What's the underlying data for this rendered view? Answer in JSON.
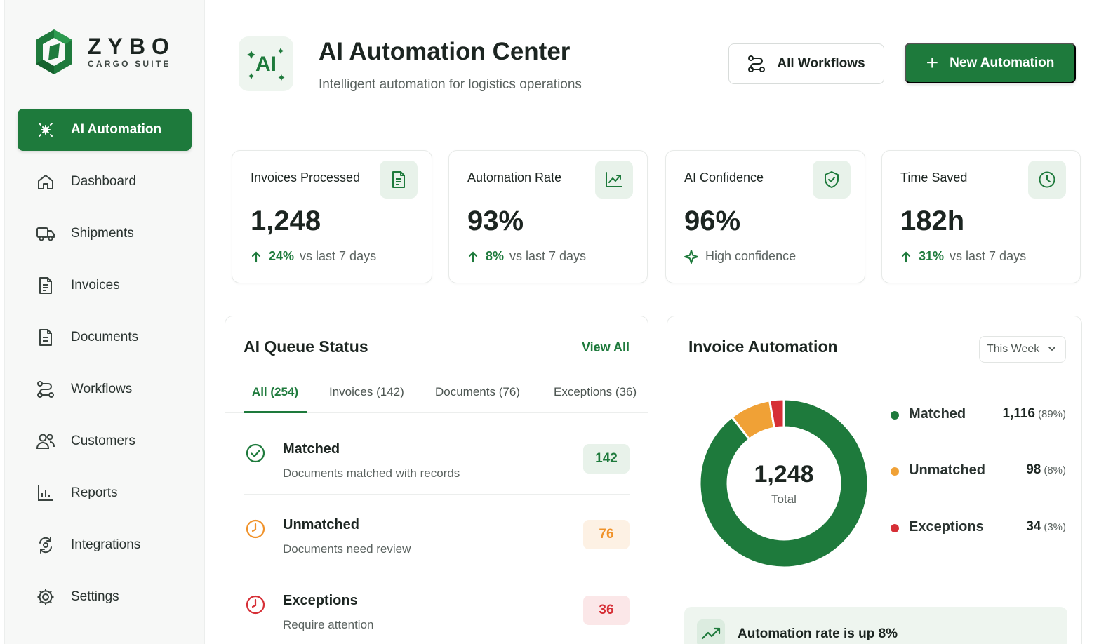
{
  "brand": {
    "name": "ZYBO",
    "sub": "CARGO SUITE"
  },
  "sidebar": {
    "items": [
      {
        "label": "AI Automation",
        "icon": "sparkle-icon",
        "active": true
      },
      {
        "label": "Dashboard",
        "icon": "home-icon"
      },
      {
        "label": "Shipments",
        "icon": "truck-icon"
      },
      {
        "label": "Invoices",
        "icon": "invoice-icon"
      },
      {
        "label": "Documents",
        "icon": "document-icon"
      },
      {
        "label": "Workflows",
        "icon": "workflow-icon"
      },
      {
        "label": "Customers",
        "icon": "users-icon"
      },
      {
        "label": "Reports",
        "icon": "reports-icon"
      },
      {
        "label": "Integrations",
        "icon": "integrations-icon"
      },
      {
        "label": "Settings",
        "icon": "gear-icon"
      }
    ]
  },
  "header": {
    "badge": "AI",
    "title": "AI Automation Center",
    "subtitle": "Intelligent automation for logistics operations",
    "all_workflows_label": "All Workflows",
    "new_automation_label": "New Automation"
  },
  "stats": [
    {
      "label": "Invoices Processed",
      "value": "1,248",
      "trend_pct": "24%",
      "trend_text": "vs last 7 days",
      "icon": "invoice-icon"
    },
    {
      "label": "Automation Rate",
      "value": "93%",
      "trend_pct": "8%",
      "trend_text": "vs last 7 days",
      "icon": "chart-up-icon"
    },
    {
      "label": "AI Confidence",
      "value": "96%",
      "trend_text": "High confidence",
      "icon": "shield-check-icon"
    },
    {
      "label": "Time Saved",
      "value": "182h",
      "trend_pct": "31%",
      "trend_text": "vs last 7 days",
      "icon": "clock-icon"
    }
  ],
  "queue": {
    "title": "AI Queue Status",
    "view_all": "View All",
    "tabs": [
      {
        "label": "All (254)",
        "active": true
      },
      {
        "label": "Invoices (142)"
      },
      {
        "label": "Documents (76)"
      },
      {
        "label": "Exceptions (36)"
      }
    ],
    "rows": [
      {
        "title": "Matched",
        "desc": "Documents matched with records",
        "count": "142",
        "color": "#1e7a3c",
        "bg": "#e8f2ea"
      },
      {
        "title": "Unmatched",
        "desc": "Documents need review",
        "count": "76",
        "color": "#f0922a",
        "bg": "#fdf1e4"
      },
      {
        "title": "Exceptions",
        "desc": "Require attention",
        "count": "36",
        "color": "#d62f36",
        "bg": "#fbe7e8"
      }
    ]
  },
  "invoice": {
    "title": "Invoice Automation",
    "period": "This Week",
    "total": "1,248",
    "total_label": "Total",
    "insight": "Automation rate is up 8%"
  },
  "chart_data": {
    "type": "pie",
    "categories": [
      "Matched",
      "Unmatched",
      "Exceptions"
    ],
    "values": [
      1116,
      98,
      34
    ],
    "percent_labels": [
      "(89%)",
      "(8%)",
      "(3%)"
    ],
    "value_labels": [
      "1,116",
      "98",
      "34"
    ],
    "colors": [
      "#1e7a3c",
      "#f0a136",
      "#d62f36"
    ]
  }
}
